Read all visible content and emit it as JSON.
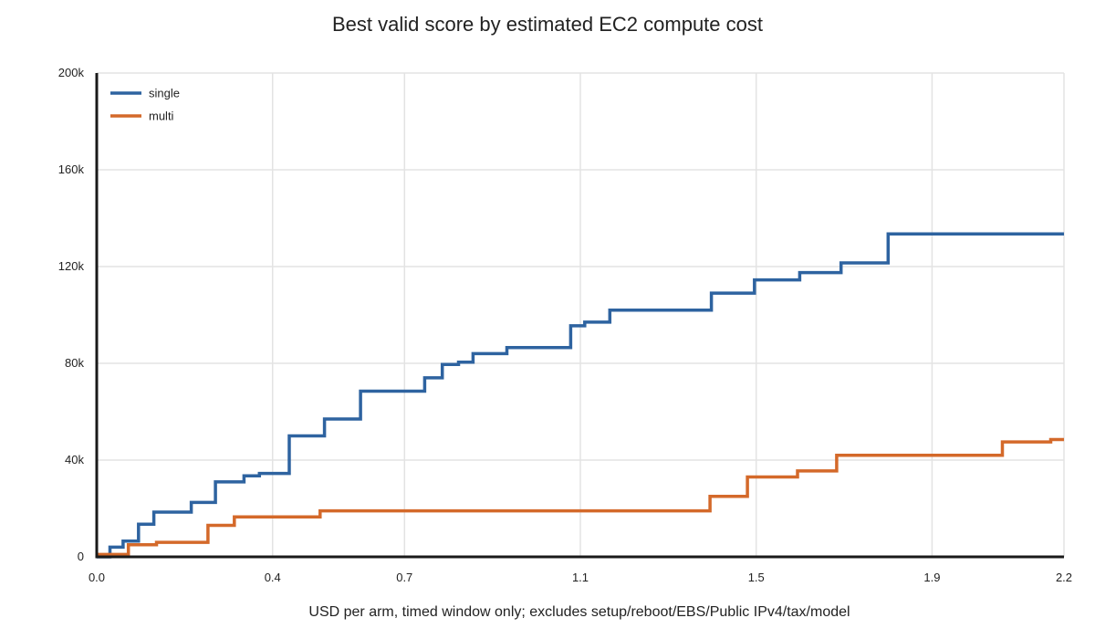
{
  "chart_data": {
    "type": "line",
    "step": true,
    "title": "Best valid score by estimated EC2 compute cost",
    "xlabel": "USD per arm, timed window only; excludes setup/reboot/EBS/Public IPv4/tax/model",
    "ylabel": "",
    "xlim": [
      0.0,
      2.2
    ],
    "ylim": [
      0,
      200000
    ],
    "xticks": [
      0.0,
      0.4,
      0.7,
      1.1,
      1.5,
      1.9,
      2.2
    ],
    "xtick_labels": [
      "0.0",
      "0.4",
      "0.7",
      "1.1",
      "1.5",
      "1.9",
      "2.2"
    ],
    "yticks": [
      0,
      40000,
      80000,
      120000,
      160000,
      200000
    ],
    "ytick_labels": [
      "0",
      "40k",
      "80k",
      "120k",
      "160k",
      "200k"
    ],
    "grid": true,
    "legend_position": "top-left",
    "series": [
      {
        "name": "single",
        "color": "#2e63a0",
        "points": [
          [
            0.0,
            0
          ],
          [
            0.03,
            4000
          ],
          [
            0.06,
            6500
          ],
          [
            0.095,
            13500
          ],
          [
            0.13,
            18500
          ],
          [
            0.215,
            22500
          ],
          [
            0.27,
            31000
          ],
          [
            0.335,
            33500
          ],
          [
            0.37,
            34500
          ],
          [
            0.438,
            50000
          ],
          [
            0.518,
            57000
          ],
          [
            0.6,
            68500
          ],
          [
            0.746,
            74000
          ],
          [
            0.786,
            79500
          ],
          [
            0.823,
            80500
          ],
          [
            0.856,
            84000
          ],
          [
            0.933,
            86500
          ],
          [
            1.078,
            95500
          ],
          [
            1.11,
            97000
          ],
          [
            1.167,
            102000
          ],
          [
            1.398,
            109000
          ],
          [
            1.496,
            114500
          ],
          [
            1.599,
            117500
          ],
          [
            1.693,
            121500
          ],
          [
            1.8,
            133500
          ],
          [
            2.2,
            133500
          ]
        ]
      },
      {
        "name": "multi",
        "color": "#d4692a",
        "points": [
          [
            0.0,
            1000
          ],
          [
            0.072,
            5000
          ],
          [
            0.136,
            6000
          ],
          [
            0.253,
            13000
          ],
          [
            0.313,
            16500
          ],
          [
            0.508,
            19000
          ],
          [
            1.078,
            19000
          ],
          [
            1.395,
            25000
          ],
          [
            1.48,
            33000
          ],
          [
            1.594,
            35500
          ],
          [
            1.683,
            42000
          ],
          [
            1.865,
            42000
          ],
          [
            2.06,
            47500
          ],
          [
            2.17,
            48500
          ],
          [
            2.2,
            48500
          ]
        ]
      }
    ]
  }
}
